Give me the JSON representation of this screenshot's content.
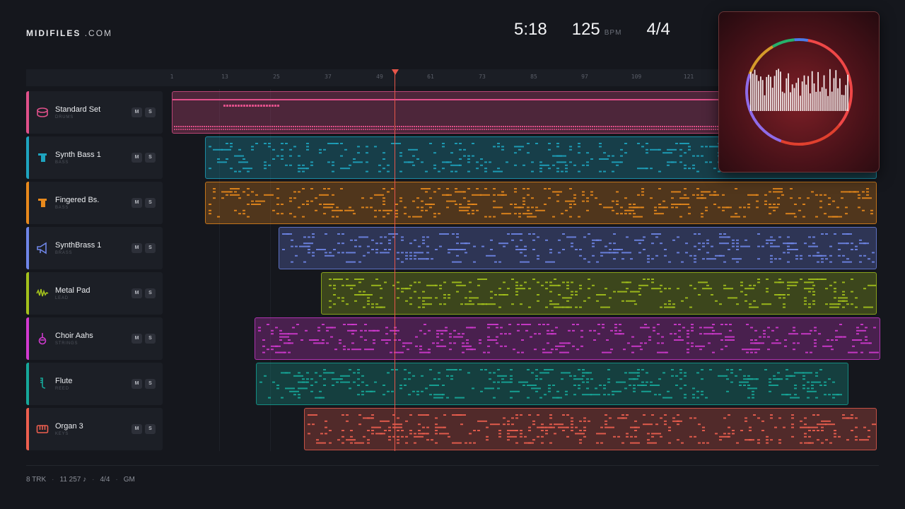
{
  "app": {
    "logo_main": "MIDIFILES",
    "logo_suffix": ".COM"
  },
  "header": {
    "time": "5:18",
    "tempo": "125",
    "tempo_unit": "BPM",
    "time_signature": "4/4"
  },
  "ruler": {
    "bars": [
      "1",
      "13",
      "25",
      "37",
      "49",
      "61",
      "73",
      "85",
      "97",
      "109",
      "121"
    ]
  },
  "tracks": [
    {
      "name": "Standard Set",
      "category": "DRUMS",
      "color": "#e0508a",
      "icon": "drum-icon",
      "mute": "M",
      "solo": "S"
    },
    {
      "name": "Synth Bass 1",
      "category": "BASS",
      "color": "#1ea4bf",
      "icon": "bass-icon",
      "mute": "M",
      "solo": "S"
    },
    {
      "name": "Fingered Bs.",
      "category": "BASS",
      "color": "#e8891c",
      "icon": "bass-icon",
      "mute": "M",
      "solo": "S"
    },
    {
      "name": "SynthBrass 1",
      "category": "BRASS",
      "color": "#6f86e8",
      "icon": "brass-icon",
      "mute": "M",
      "solo": "S"
    },
    {
      "name": "Metal Pad",
      "category": "LEAD",
      "color": "#a3c11c",
      "icon": "lead-icon",
      "mute": "M",
      "solo": "S"
    },
    {
      "name": "Choir Aahs",
      "category": "STRINGS",
      "color": "#d23ad0",
      "icon": "strings-icon",
      "mute": "M",
      "solo": "S"
    },
    {
      "name": "Flute",
      "category": "REED",
      "color": "#16a89a",
      "icon": "reed-icon",
      "mute": "M",
      "solo": "S"
    },
    {
      "name": "Organ 3",
      "category": "KEYS",
      "color": "#ee5f4f",
      "icon": "keys-icon",
      "mute": "M",
      "solo": "S"
    }
  ],
  "footer": {
    "tracks": "8 TRK",
    "notes": "11 257 ♪",
    "meter": "4/4",
    "standard": "GM"
  }
}
